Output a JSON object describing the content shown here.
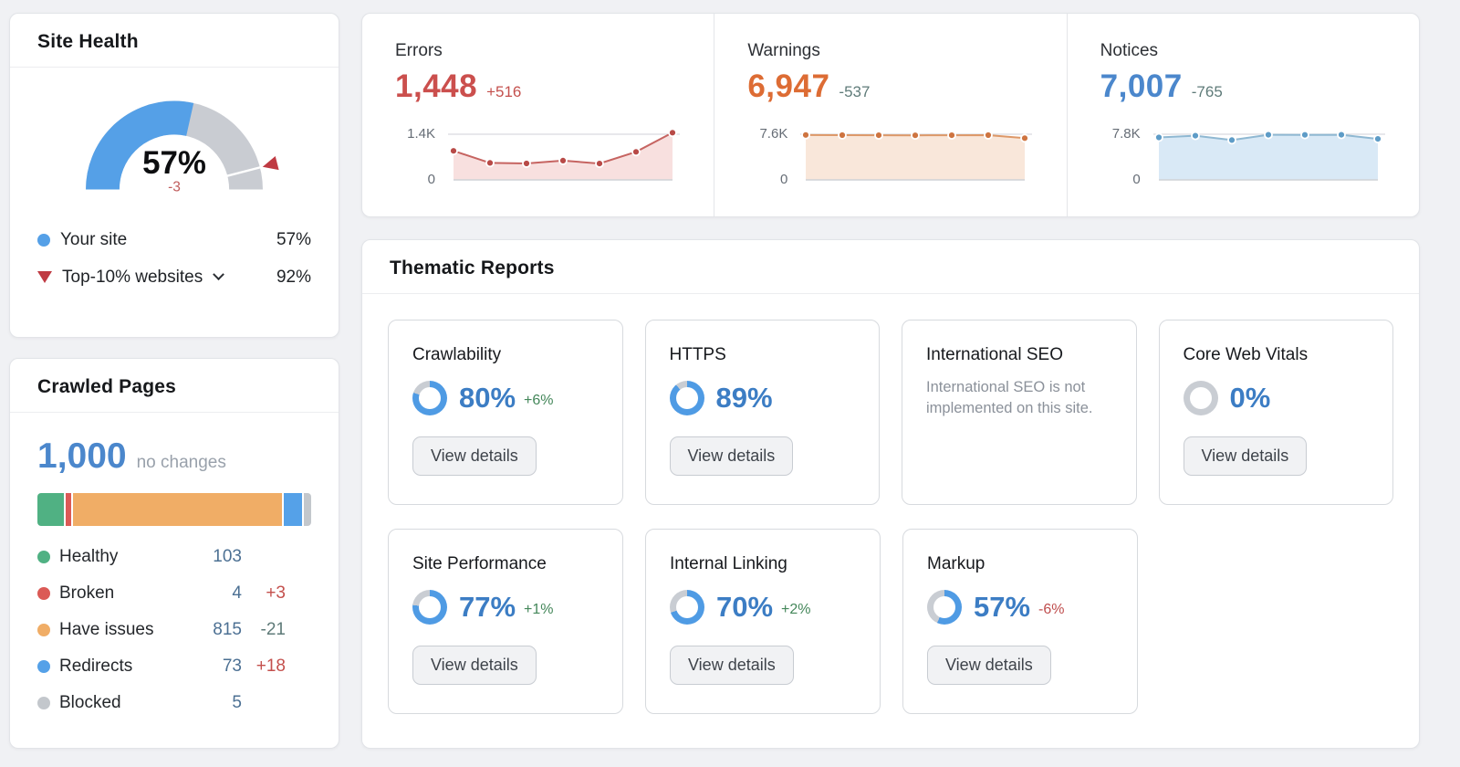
{
  "site_health": {
    "title": "Site Health",
    "gauge": {
      "value": 57,
      "value_label": "57%",
      "delta": "-3",
      "delta_color": "#c05b5b",
      "arc_color": "#55a0e7",
      "track_color": "#c9ccd2",
      "marker_value": 92,
      "marker_color": "#bf3a42"
    },
    "legend": [
      {
        "label": "Your site",
        "value": "57%",
        "marker": "dot",
        "color": "#55a0e7"
      },
      {
        "label": "Top-10% websites",
        "value": "92%",
        "marker": "triangle",
        "color": "#bf3a42",
        "dropdown": true
      }
    ]
  },
  "crawled_pages": {
    "title": "Crawled Pages",
    "total": "1,000",
    "total_color": "#4b87cc",
    "note": "no changes",
    "rows": [
      {
        "label": "Healthy",
        "value": "103",
        "count": 103,
        "delta": "",
        "delta_color": "",
        "color": "#50b183"
      },
      {
        "label": "Broken",
        "value": "4",
        "count": 4,
        "delta": "+3",
        "delta_color": "#c4504d",
        "color": "#db5a56"
      },
      {
        "label": "Have issues",
        "value": "815",
        "count": 815,
        "delta": "-21",
        "delta_color": "#5f7b79",
        "color": "#f0ad66"
      },
      {
        "label": "Redirects",
        "value": "73",
        "count": 73,
        "delta": "+18",
        "delta_color": "#c4504d",
        "color": "#55a1e8"
      },
      {
        "label": "Blocked",
        "value": "5",
        "count": 5,
        "delta": "",
        "delta_color": "",
        "color": "#c3c7cc"
      }
    ],
    "value_color": "#4c7093"
  },
  "issue_metrics": [
    {
      "label": "Errors",
      "value": "1,448",
      "value_color": "#cb4f4d",
      "delta": "+516",
      "delta_color": "#c4504d",
      "axis_max_label": "1.4K",
      "axis_min_label": "0",
      "spark": {
        "axis_max": 1400,
        "values": [
          890,
          520,
          505,
          590,
          500,
          860,
          1448
        ],
        "line": "#c66461",
        "dot": "#b84a47",
        "fill": "#f8e0df"
      }
    },
    {
      "label": "Warnings",
      "value": "6,947",
      "value_color": "#dd6c34",
      "delta": "-537",
      "delta_color": "#5f7b79",
      "axis_max_label": "7.6K",
      "axis_min_label": "0",
      "spark": {
        "axis_max": 7600,
        "values": [
          7480,
          7450,
          7440,
          7420,
          7430,
          7450,
          6947
        ],
        "line": "#dd9868",
        "dot": "#ce7440",
        "fill": "#f9e7da"
      }
    },
    {
      "label": "Notices",
      "value": "7,007",
      "value_color": "#4b87cc",
      "delta": "-765",
      "delta_color": "#5f7b79",
      "axis_max_label": "7.8K",
      "axis_min_label": "0",
      "spark": {
        "axis_max": 7800,
        "values": [
          7250,
          7550,
          6800,
          7700,
          7690,
          7700,
          7007
        ],
        "line": "#8fb8d2",
        "dot": "#5e9cc7",
        "fill": "#d9e9f6"
      }
    }
  ],
  "thematic_reports": {
    "title": "Thematic Reports",
    "donut_color": "#4f9be4",
    "donut_track": "#c9cdd3",
    "percent_color": "#3c7dc4",
    "button_label": "View details",
    "cards": [
      {
        "title": "Crawlability",
        "percent": "80%",
        "value": 80,
        "delta": "+6%",
        "delta_color": "#44875a",
        "button": true
      },
      {
        "title": "HTTPS",
        "percent": "89%",
        "value": 89,
        "delta": "",
        "delta_color": "",
        "button": true
      },
      {
        "title": "International SEO",
        "description": "International SEO is not implemented on this site.",
        "button": false
      },
      {
        "title": "Core Web Vitals",
        "percent": "0%",
        "value": 0,
        "delta": "",
        "delta_color": "",
        "button": true
      },
      {
        "title": "Site Performance",
        "percent": "77%",
        "value": 77,
        "delta": "+1%",
        "delta_color": "#44875a",
        "button": true
      },
      {
        "title": "Internal Linking",
        "percent": "70%",
        "value": 70,
        "delta": "+2%",
        "delta_color": "#44875a",
        "button": true
      },
      {
        "title": "Markup",
        "percent": "57%",
        "value": 57,
        "delta": "-6%",
        "delta_color": "#bf4d4d",
        "button": true
      }
    ]
  }
}
